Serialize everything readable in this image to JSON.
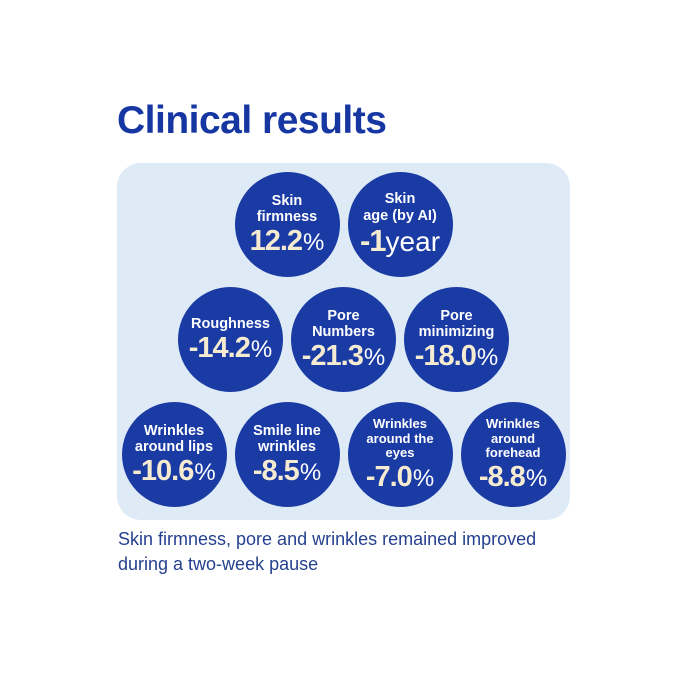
{
  "title": "Clinical results",
  "caption": "Skin firmness, pore and wrinkles remained improved\nduring a two-week pause",
  "colors": {
    "bubble_blue": "#1a3aa4",
    "panel_background": "#deebf7",
    "title_blue": "#1637a2",
    "caption_blue": "#25418f",
    "value_cream": "#f5ebd1",
    "label_white": "#ffffff",
    "page_background": "#ffffff"
  },
  "panel": {
    "rows": [
      {
        "bubbles": [
          {
            "label": "Skin\nfirmness",
            "value": "12.2",
            "unit": "%"
          },
          {
            "label": "Skin\nage (by AI)",
            "value": "-1",
            "unit": "year"
          }
        ]
      },
      {
        "bubbles": [
          {
            "label": "Roughness",
            "value": "-14.2",
            "unit": "%"
          },
          {
            "label": "Pore\nNumbers",
            "value": "-21.3",
            "unit": "%"
          },
          {
            "label": "Pore\nminimizing",
            "value": "-18.0",
            "unit": "%"
          }
        ]
      },
      {
        "bubbles": [
          {
            "label": "Wrinkles\naround lips",
            "value": "-10.6",
            "unit": "%"
          },
          {
            "label": "Smile line\nwrinkles",
            "value": "-8.5",
            "unit": "%"
          },
          {
            "label": "Wrinkles\naround the\neyes",
            "value": "-7.0",
            "unit": "%"
          },
          {
            "label": "Wrinkles\naround\nforehead",
            "value": "-8.8",
            "unit": "%"
          }
        ]
      }
    ]
  },
  "chart_data": {
    "type": "table",
    "title": "Clinical results",
    "categories": [
      "Skin firmness",
      "Skin age (by AI)",
      "Roughness",
      "Pore Numbers",
      "Pore minimizing",
      "Wrinkles around lips",
      "Smile line wrinkles",
      "Wrinkles around the eyes",
      "Wrinkles around forehead"
    ],
    "values": [
      "12.2%",
      "-1 year",
      "-14.2%",
      "-21.3%",
      "-18.0%",
      "-10.6%",
      "-8.5%",
      "-7.0%",
      "-8.8%"
    ],
    "note": "Skin firmness, pore and wrinkles remained improved during a two-week pause",
    "layout_hint": "nine blue stat bubbles in rows of 2 / 3 / 4 inside a light-blue rounded panel"
  }
}
